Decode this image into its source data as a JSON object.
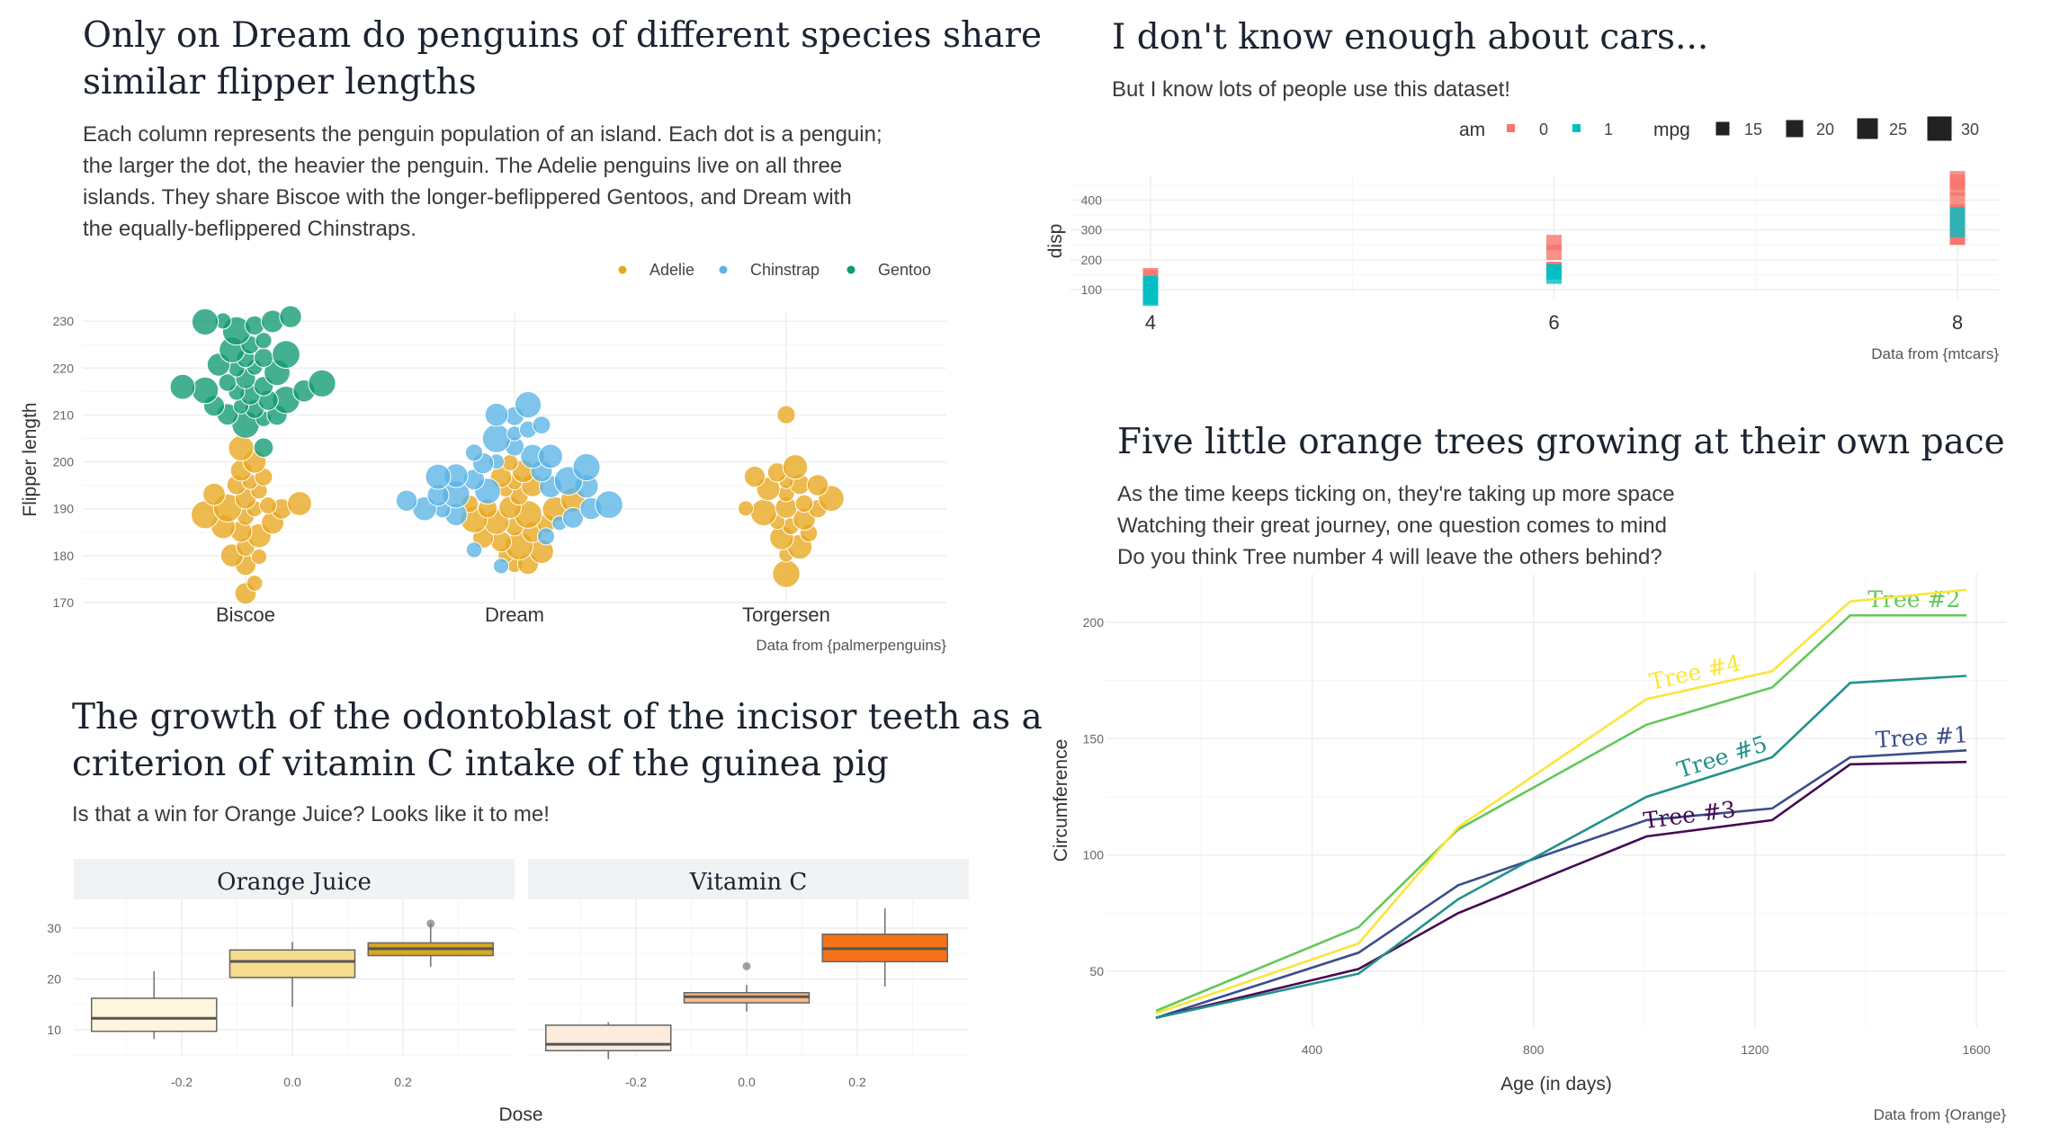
{
  "panels": {
    "penguins": {
      "title_l1": "Only on Dream do penguins of different species share",
      "title_l2": "similar flipper lengths",
      "sub_l1": "Each column represents the penguin population of an island. Each dot is a penguin;",
      "sub_l2": "the larger the dot, the heavier the penguin. The Adelie penguins live on all three",
      "sub_l3": "islands. They share Biscoe with the longer-beflippered Gentoos, and Dream with",
      "sub_l4": "the equally-beflippered Chinstraps.",
      "caption": "Data from {palmerpenguins}",
      "legend": [
        "Adelie",
        "Chinstrap",
        "Gentoo"
      ]
    },
    "cars": {
      "title": "I don't know enough about cars...",
      "sub": "But I know lots of people use this dataset!",
      "caption": "Data from {mtcars}",
      "legend_am_title": "am",
      "legend_am": [
        "0",
        "1"
      ],
      "legend_mpg_title": "mpg",
      "legend_mpg": [
        "15",
        "20",
        "25",
        "30"
      ]
    },
    "teeth": {
      "title_l1": "The growth of the odontoblast of the incisor teeth as a",
      "title_l2": "criterion of vitamin C intake of the guinea pig",
      "sub": "Is that a win for Orange Juice? Looks like it to me!"
    },
    "trees": {
      "title": "Five little orange trees growing at their own pace",
      "sub_l1": "As the time keeps ticking on, they're taking up more space",
      "sub_l2": "Watching their great journey, one question comes to mind",
      "sub_l3": "Do you think Tree number 4 will leave the others behind?",
      "caption": "Data from {Orange}"
    }
  },
  "colors": {
    "adelie": "#E8A71E",
    "chinstrap": "#5AB4E6",
    "gentoo": "#109A72",
    "am0": "#F8766D",
    "am1": "#00BFC4",
    "oj": [
      "#FEF5DC",
      "#F6DC8C",
      "#D8A625"
    ],
    "vc": [
      "#FDEBDD",
      "#F6B98B",
      "#F57316"
    ],
    "trees": [
      "#3B4D8A",
      "#63C85A",
      "#450A54",
      "#F9E639",
      "#23918B"
    ]
  },
  "chart_data": [
    {
      "id": "penguins",
      "type": "scatter",
      "subtype": "beeswarm",
      "xlabel": "",
      "ylabel": "Flipper length",
      "categories": [
        "Biscoe",
        "Dream",
        "Torgersen"
      ],
      "ylim": [
        170,
        231
      ],
      "yticks": [
        170,
        180,
        190,
        200,
        210,
        220,
        230
      ],
      "series": [
        {
          "name": "Adelie",
          "points": [
            [
              "Biscoe",
              172
            ],
            [
              "Biscoe",
              174
            ],
            [
              "Biscoe",
              178
            ],
            [
              "Biscoe",
              180
            ],
            [
              "Biscoe",
              180
            ],
            [
              "Biscoe",
              182
            ],
            [
              "Biscoe",
              184
            ],
            [
              "Biscoe",
              185
            ],
            [
              "Biscoe",
              186
            ],
            [
              "Biscoe",
              187
            ],
            [
              "Biscoe",
              188
            ],
            [
              "Biscoe",
              189
            ],
            [
              "Biscoe",
              190
            ],
            [
              "Biscoe",
              190
            ],
            [
              "Biscoe",
              190
            ],
            [
              "Biscoe",
              191
            ],
            [
              "Biscoe",
              191
            ],
            [
              "Biscoe",
              192
            ],
            [
              "Biscoe",
              193
            ],
            [
              "Biscoe",
              194
            ],
            [
              "Biscoe",
              195
            ],
            [
              "Biscoe",
              196
            ],
            [
              "Biscoe",
              197
            ],
            [
              "Biscoe",
              198
            ],
            [
              "Biscoe",
              200
            ],
            [
              "Biscoe",
              203
            ],
            [
              "Dream",
              178
            ],
            [
              "Dream",
              178
            ],
            [
              "Dream",
              180
            ],
            [
              "Dream",
              181
            ],
            [
              "Dream",
              182
            ],
            [
              "Dream",
              183
            ],
            [
              "Dream",
              184
            ],
            [
              "Dream",
              185
            ],
            [
              "Dream",
              186
            ],
            [
              "Dream",
              187
            ],
            [
              "Dream",
              187
            ],
            [
              "Dream",
              188
            ],
            [
              "Dream",
              189
            ],
            [
              "Dream",
              190
            ],
            [
              "Dream",
              190
            ],
            [
              "Dream",
              190
            ],
            [
              "Dream",
              191
            ],
            [
              "Dream",
              192
            ],
            [
              "Dream",
              193
            ],
            [
              "Dream",
              194
            ],
            [
              "Dream",
              195
            ],
            [
              "Dream",
              196
            ],
            [
              "Dream",
              197
            ],
            [
              "Dream",
              198
            ],
            [
              "Dream",
              200
            ],
            [
              "Torgersen",
              176
            ],
            [
              "Torgersen",
              180
            ],
            [
              "Torgersen",
              182
            ],
            [
              "Torgersen",
              184
            ],
            [
              "Torgersen",
              185
            ],
            [
              "Torgersen",
              186
            ],
            [
              "Torgersen",
              187
            ],
            [
              "Torgersen",
              188
            ],
            [
              "Torgersen",
              189
            ],
            [
              "Torgersen",
              190
            ],
            [
              "Torgersen",
              190
            ],
            [
              "Torgersen",
              190
            ],
            [
              "Torgersen",
              191
            ],
            [
              "Torgersen",
              192
            ],
            [
              "Torgersen",
              193
            ],
            [
              "Torgersen",
              194
            ],
            [
              "Torgersen",
              195
            ],
            [
              "Torgersen",
              195
            ],
            [
              "Torgersen",
              196
            ],
            [
              "Torgersen",
              197
            ],
            [
              "Torgersen",
              198
            ],
            [
              "Torgersen",
              199
            ],
            [
              "Torgersen",
              210
            ]
          ]
        },
        {
          "name": "Chinstrap",
          "points": [
            [
              "Dream",
              178
            ],
            [
              "Dream",
              181
            ],
            [
              "Dream",
              184
            ],
            [
              "Dream",
              187
            ],
            [
              "Dream",
              188
            ],
            [
              "Dream",
              189
            ],
            [
              "Dream",
              190
            ],
            [
              "Dream",
              190
            ],
            [
              "Dream",
              190
            ],
            [
              "Dream",
              191
            ],
            [
              "Dream",
              192
            ],
            [
              "Dream",
              193
            ],
            [
              "Dream",
              193
            ],
            [
              "Dream",
              194
            ],
            [
              "Dream",
              195
            ],
            [
              "Dream",
              195
            ],
            [
              "Dream",
              196
            ],
            [
              "Dream",
              196
            ],
            [
              "Dream",
              197
            ],
            [
              "Dream",
              197
            ],
            [
              "Dream",
              198
            ],
            [
              "Dream",
              199
            ],
            [
              "Dream",
              200
            ],
            [
              "Dream",
              200
            ],
            [
              "Dream",
              201
            ],
            [
              "Dream",
              201
            ],
            [
              "Dream",
              202
            ],
            [
              "Dream",
              203
            ],
            [
              "Dream",
              205
            ],
            [
              "Dream",
              206
            ],
            [
              "Dream",
              207
            ],
            [
              "Dream",
              208
            ],
            [
              "Dream",
              210
            ],
            [
              "Dream",
              210
            ],
            [
              "Dream",
              212
            ]
          ]
        },
        {
          "name": "Gentoo",
          "points": [
            [
              "Biscoe",
              203
            ],
            [
              "Biscoe",
              208
            ],
            [
              "Biscoe",
              209
            ],
            [
              "Biscoe",
              210
            ],
            [
              "Biscoe",
              210
            ],
            [
              "Biscoe",
              211
            ],
            [
              "Biscoe",
              212
            ],
            [
              "Biscoe",
              212
            ],
            [
              "Biscoe",
              213
            ],
            [
              "Biscoe",
              213
            ],
            [
              "Biscoe",
              214
            ],
            [
              "Biscoe",
              215
            ],
            [
              "Biscoe",
              215
            ],
            [
              "Biscoe",
              215
            ],
            [
              "Biscoe",
              216
            ],
            [
              "Biscoe",
              216
            ],
            [
              "Biscoe",
              217
            ],
            [
              "Biscoe",
              217
            ],
            [
              "Biscoe",
              218
            ],
            [
              "Biscoe",
              219
            ],
            [
              "Biscoe",
              220
            ],
            [
              "Biscoe",
              220
            ],
            [
              "Biscoe",
              221
            ],
            [
              "Biscoe",
              222
            ],
            [
              "Biscoe",
              222
            ],
            [
              "Biscoe",
              223
            ],
            [
              "Biscoe",
              224
            ],
            [
              "Biscoe",
              225
            ],
            [
              "Biscoe",
              226
            ],
            [
              "Biscoe",
              228
            ],
            [
              "Biscoe",
              229
            ],
            [
              "Biscoe",
              230
            ],
            [
              "Biscoe",
              230
            ],
            [
              "Biscoe",
              230
            ],
            [
              "Biscoe",
              231
            ]
          ]
        }
      ]
    },
    {
      "id": "cars",
      "type": "scatter",
      "xlabel": "",
      "ylabel": "disp",
      "x_categories": [
        "4",
        "6",
        "8"
      ],
      "ylim": [
        70,
        480
      ],
      "yticks": [
        100,
        200,
        300,
        400
      ],
      "series": [
        {
          "name": "0",
          "points": [
            [
              4,
              147
            ],
            [
              4,
              141
            ],
            [
              4,
              120
            ],
            [
              6,
              258
            ],
            [
              6,
              225
            ],
            [
              6,
              168
            ],
            [
              6,
              168
            ],
            [
              8,
              360
            ],
            [
              8,
              360
            ],
            [
              8,
              276
            ],
            [
              8,
              276
            ],
            [
              8,
              276
            ],
            [
              8,
              472
            ],
            [
              8,
              460
            ],
            [
              8,
              440
            ],
            [
              8,
              318
            ],
            [
              8,
              304
            ],
            [
              8,
              350
            ],
            [
              8,
              400
            ]
          ]
        },
        {
          "name": "1",
          "points": [
            [
              4,
              108
            ],
            [
              4,
              79
            ],
            [
              4,
              76
            ],
            [
              4,
              71
            ],
            [
              4,
              79
            ],
            [
              4,
              120
            ],
            [
              4,
              95
            ],
            [
              4,
              121
            ],
            [
              6,
              160
            ],
            [
              6,
              160
            ],
            [
              6,
              145
            ],
            [
              8,
              351
            ],
            [
              8,
              301
            ]
          ]
        }
      ]
    },
    {
      "id": "teeth",
      "type": "box",
      "xlabel": "Dose",
      "ylabel": "",
      "facets": [
        "Orange Juice",
        "Vitamin C"
      ],
      "x_tick_labels": [
        "-0.2",
        "0.0",
        "0.2"
      ],
      "yticks": [
        10,
        20,
        30
      ],
      "boxes": [
        {
          "facet": "Orange Juice",
          "pos": -0.25,
          "min": 8.2,
          "q1": 9.7,
          "median": 12.25,
          "q3": 16.2,
          "max": 21.5,
          "outliers": []
        },
        {
          "facet": "Orange Juice",
          "pos": 0,
          "min": 14.5,
          "q1": 20.3,
          "median": 23.45,
          "q3": 25.7,
          "max": 27.3,
          "outliers": []
        },
        {
          "facet": "Orange Juice",
          "pos": 0.25,
          "min": 22.4,
          "q1": 24.6,
          "median": 25.95,
          "q3": 27.1,
          "max": 30.9,
          "outliers": [
            30.9
          ]
        },
        {
          "facet": "Vitamin C",
          "pos": -0.25,
          "min": 4.2,
          "q1": 5.9,
          "median": 7.15,
          "q3": 10.9,
          "max": 11.5,
          "outliers": []
        },
        {
          "facet": "Vitamin C",
          "pos": 0,
          "min": 13.6,
          "q1": 15.3,
          "median": 16.5,
          "q3": 17.3,
          "max": 18.8,
          "outliers": [
            22.5
          ]
        },
        {
          "facet": "Vitamin C",
          "pos": 0.25,
          "min": 18.5,
          "q1": 23.4,
          "median": 25.95,
          "q3": 28.8,
          "max": 33.9,
          "outliers": []
        }
      ]
    },
    {
      "id": "trees",
      "type": "line",
      "xlabel": "Age (in days)",
      "ylabel": "Circumference",
      "xlim": [
        60,
        1640
      ],
      "ylim": [
        20,
        220
      ],
      "xticks": [
        400,
        800,
        1200,
        1600
      ],
      "yticks": [
        50,
        100,
        150,
        200
      ],
      "x": [
        118,
        484,
        664,
        1004,
        1231,
        1372,
        1582
      ],
      "series": [
        {
          "name": "Tree #1",
          "values": [
            30,
            58,
            87,
            115,
            120,
            142,
            145
          ]
        },
        {
          "name": "Tree #2",
          "values": [
            33,
            69,
            111,
            156,
            172,
            203,
            203
          ]
        },
        {
          "name": "Tree #3",
          "values": [
            30,
            51,
            75,
            108,
            115,
            139,
            140
          ]
        },
        {
          "name": "Tree #4",
          "values": [
            32,
            62,
            112,
            167,
            179,
            209,
            214
          ]
        },
        {
          "name": "Tree #5",
          "values": [
            30,
            49,
            81,
            125,
            142,
            174,
            177
          ]
        }
      ]
    }
  ]
}
